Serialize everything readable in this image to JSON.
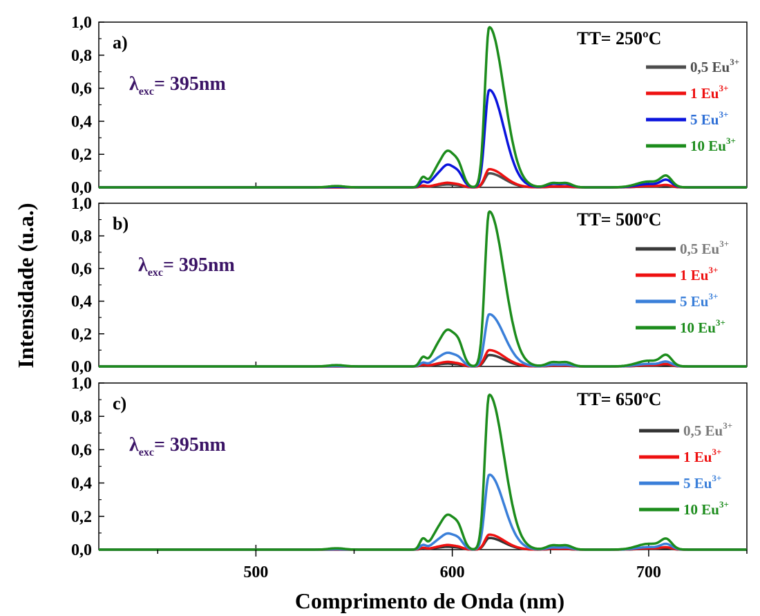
{
  "chart_data": {
    "type": "line",
    "xlabel": "Comprimento de Onda (nm)",
    "ylabel": "Intensidade (u.a.)",
    "xlim": [
      420,
      750
    ],
    "ylim": [
      0,
      1.0
    ],
    "x_ticks": [
      500,
      600,
      700
    ],
    "x_tick_labels": [
      "500",
      "600",
      "700"
    ],
    "y_ticks": [
      0,
      0.2,
      0.4,
      0.6,
      0.8,
      1.0
    ],
    "y_tick_labels": [
      "0,0",
      "0,2",
      "0,4",
      "0,6",
      "0,8",
      "1,0"
    ],
    "legend_placement": "right",
    "panels": [
      {
        "label": "a)",
        "tt": "TT= 250ºC",
        "excitation": {
          "symbol": "λ",
          "subscript": "exc",
          "value": "= 395nm"
        },
        "series": [
          {
            "name": "0,5 Eu",
            "superscript": "3+",
            "color": "#4d4d4d",
            "legend_color": "#4d4d4d",
            "peaks": {
              "p540": 0.0,
              "p585": 0.005,
              "p593": 0.01,
              "p598": 0.012,
              "p603": 0.01,
              "p619": 0.085,
              "p650": 0.003,
              "p658": 0.003,
              "p700": 0.005,
              "p709": 0.008
            }
          },
          {
            "name": "1 Eu",
            "superscript": "3+",
            "color": "#ee1111",
            "legend_color": "#ee1111",
            "peaks": {
              "p540": 0.0,
              "p585": 0.01,
              "p593": 0.015,
              "p598": 0.02,
              "p603": 0.015,
              "p619": 0.11,
              "p650": 0.005,
              "p658": 0.005,
              "p700": 0.008,
              "p709": 0.012
            }
          },
          {
            "name": "5 Eu",
            "superscript": "3+",
            "color": "#0a14dd",
            "legend_color": "#2e6fd6",
            "peaks": {
              "p540": 0.003,
              "p585": 0.03,
              "p593": 0.07,
              "p598": 0.1,
              "p603": 0.08,
              "p619": 0.59,
              "p650": 0.02,
              "p658": 0.02,
              "p700": 0.02,
              "p709": 0.04
            }
          },
          {
            "name": "10 Eu",
            "superscript": "3+",
            "color": "#1c8c1c",
            "legend_color": "#1c8c1c",
            "peaks": {
              "p540": 0.008,
              "p585": 0.055,
              "p593": 0.115,
              "p598": 0.16,
              "p603": 0.13,
              "p619": 0.97,
              "p650": 0.025,
              "p658": 0.025,
              "p700": 0.035,
              "p709": 0.06
            }
          }
        ]
      },
      {
        "label": "b)",
        "tt": "TT= 500ºC",
        "excitation": {
          "symbol": "λ",
          "subscript": "exc",
          "value": "= 395nm"
        },
        "series": [
          {
            "name": "0,5 Eu",
            "superscript": "3+",
            "color": "#3a3a3a",
            "legend_color": "#7a7a7a",
            "peaks": {
              "p540": 0.0,
              "p585": 0.005,
              "p593": 0.01,
              "p598": 0.012,
              "p603": 0.01,
              "p619": 0.07,
              "p650": 0.003,
              "p658": 0.003,
              "p700": 0.005,
              "p709": 0.008
            }
          },
          {
            "name": "1 Eu",
            "superscript": "3+",
            "color": "#ee1111",
            "legend_color": "#ee1111",
            "peaks": {
              "p540": 0.0,
              "p585": 0.01,
              "p593": 0.015,
              "p598": 0.02,
              "p603": 0.015,
              "p619": 0.1,
              "p650": 0.005,
              "p658": 0.005,
              "p700": 0.008,
              "p709": 0.012
            }
          },
          {
            "name": "5 Eu",
            "superscript": "3+",
            "color": "#3a7fd9",
            "legend_color": "#3a7fd9",
            "peaks": {
              "p540": 0.002,
              "p585": 0.02,
              "p593": 0.045,
              "p598": 0.06,
              "p603": 0.05,
              "p619": 0.32,
              "p650": 0.01,
              "p658": 0.01,
              "p700": 0.015,
              "p709": 0.025
            }
          },
          {
            "name": "10 Eu",
            "superscript": "3+",
            "color": "#1c8c1c",
            "legend_color": "#1c8c1c",
            "peaks": {
              "p540": 0.008,
              "p585": 0.05,
              "p593": 0.12,
              "p598": 0.16,
              "p603": 0.14,
              "p619": 0.95,
              "p650": 0.025,
              "p658": 0.025,
              "p700": 0.035,
              "p709": 0.06
            }
          }
        ]
      },
      {
        "label": "c)",
        "tt": "TT= 650ºC",
        "excitation": {
          "symbol": "λ",
          "subscript": "exc",
          "value": "= 395nm"
        },
        "series": [
          {
            "name": "0,5 Eu",
            "superscript": "3+",
            "color": "#333333",
            "legend_color": "#7a7a7a",
            "peaks": {
              "p540": 0.0,
              "p585": 0.005,
              "p593": 0.01,
              "p598": 0.012,
              "p603": 0.01,
              "p619": 0.07,
              "p650": 0.003,
              "p658": 0.003,
              "p700": 0.005,
              "p709": 0.008
            }
          },
          {
            "name": "1 Eu",
            "superscript": "3+",
            "color": "#ee1111",
            "legend_color": "#ee1111",
            "peaks": {
              "p540": 0.0,
              "p585": 0.01,
              "p593": 0.015,
              "p598": 0.02,
              "p603": 0.015,
              "p619": 0.09,
              "p650": 0.005,
              "p658": 0.005,
              "p700": 0.008,
              "p709": 0.012
            }
          },
          {
            "name": "5 Eu",
            "superscript": "3+",
            "color": "#3a7fd9",
            "legend_color": "#3a7fd9",
            "peaks": {
              "p540": 0.002,
              "p585": 0.025,
              "p593": 0.05,
              "p598": 0.07,
              "p603": 0.06,
              "p619": 0.45,
              "p650": 0.012,
              "p658": 0.012,
              "p700": 0.015,
              "p709": 0.03
            }
          },
          {
            "name": "10 Eu",
            "superscript": "3+",
            "color": "#1c8c1c",
            "legend_color": "#1c8c1c",
            "peaks": {
              "p540": 0.008,
              "p585": 0.06,
              "p593": 0.11,
              "p598": 0.15,
              "p603": 0.13,
              "p619": 0.93,
              "p650": 0.025,
              "p658": 0.025,
              "p700": 0.035,
              "p709": 0.055
            }
          }
        ]
      }
    ]
  }
}
